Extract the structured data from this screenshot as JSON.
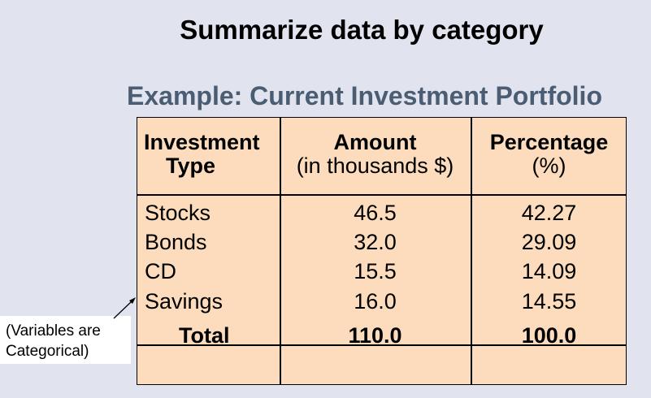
{
  "title": "Summarize data by category",
  "subtitle": "Example: Current Investment Portfolio",
  "table": {
    "headers": {
      "col1_line1": "Investment",
      "col1_line2": "Type",
      "col2_line1": "Amount",
      "col2_line2": "(in thousands $)",
      "col3_line1": "Percentage",
      "col3_line2": "(%)"
    },
    "rows": [
      {
        "type": "Stocks",
        "amount": "46.5",
        "percentage": "42.27"
      },
      {
        "type": "Bonds",
        "amount": "32.0",
        "percentage": "29.09"
      },
      {
        "type": "CD",
        "amount": "15.5",
        "percentage": "14.09"
      },
      {
        "type": "Savings",
        "amount": "16.0",
        "percentage": "14.55"
      }
    ],
    "total": {
      "label": "Total",
      "amount": "110.0",
      "percentage": "100.0"
    }
  },
  "note": {
    "line1": "(Variables are",
    "line2": "Categorical)"
  }
}
